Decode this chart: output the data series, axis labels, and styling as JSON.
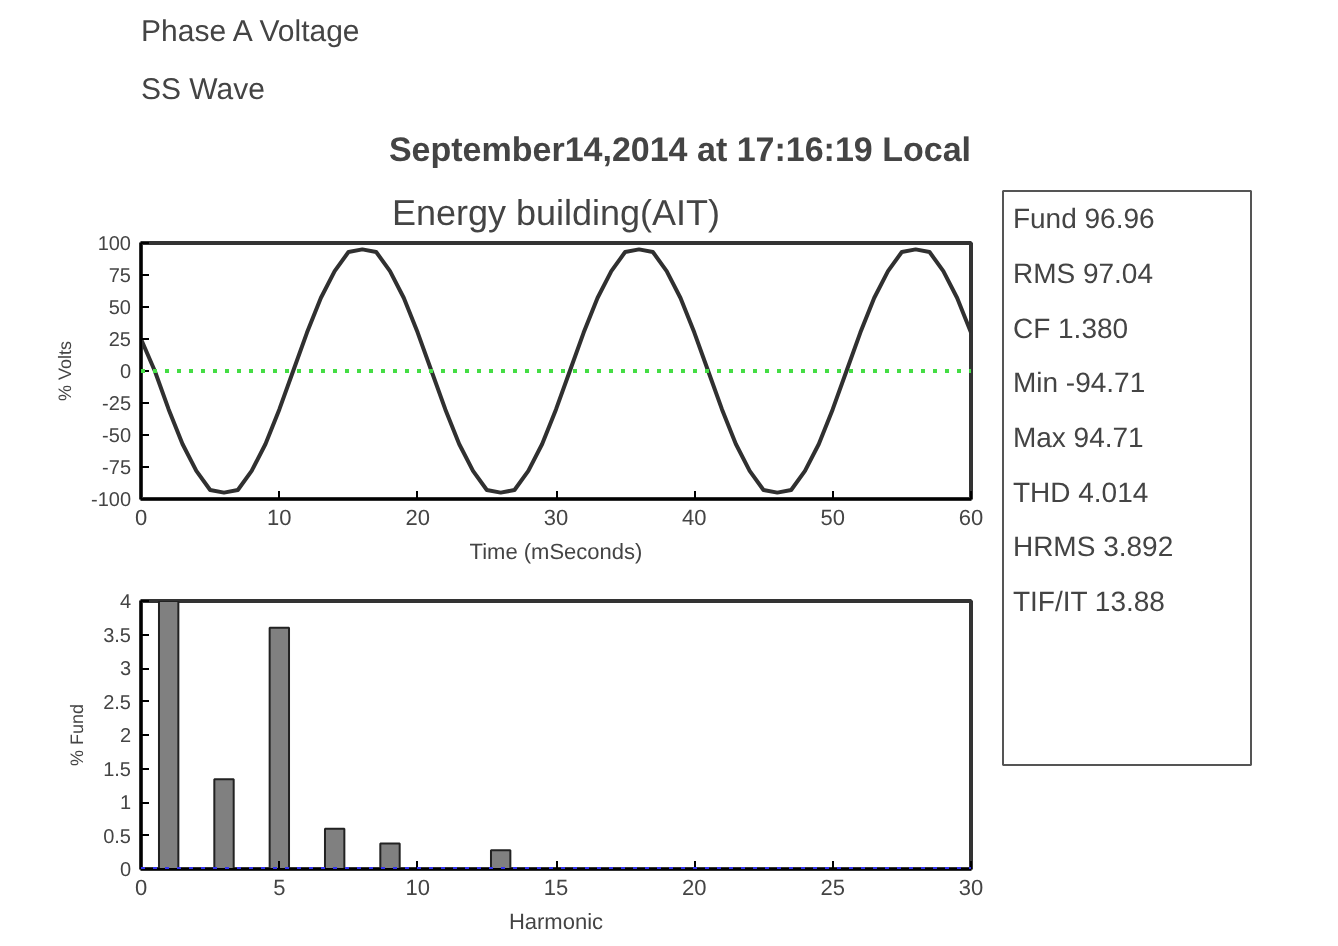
{
  "chart_data": [
    {
      "type": "line",
      "title": "Energy building(AIT)",
      "annotations": [
        "Phase A Voltage",
        "SS Wave",
        "September14,2014 at 17:16:19 Local"
      ],
      "xlabel": "Time (mSeconds)",
      "ylabel": "% Volts",
      "xlim": [
        0,
        60
      ],
      "xticks": [
        0,
        10,
        20,
        30,
        40,
        50,
        60
      ],
      "ylim": [
        -100,
        100
      ],
      "yticks": [
        -100,
        -75,
        -50,
        -25,
        0,
        25,
        50,
        75,
        100
      ],
      "grid": false,
      "line_style": "solid",
      "marker": "none",
      "x": [
        0,
        1,
        2,
        3,
        4,
        5,
        6,
        7,
        8,
        9,
        10,
        11,
        12,
        13,
        14,
        15,
        16,
        17,
        18,
        19,
        20,
        21,
        22,
        23,
        24,
        25,
        26,
        27,
        28,
        29,
        30,
        31,
        32,
        33,
        34,
        35,
        36,
        37,
        38,
        39,
        40,
        41,
        42,
        43,
        44,
        45,
        46,
        47,
        48,
        49,
        50,
        51,
        52,
        53,
        54,
        55,
        56,
        57,
        58,
        59,
        60
      ],
      "series": [
        {
          "color": "#303030",
          "values": [
            25,
            0,
            -30,
            -57,
            -78,
            -93,
            -95,
            -93,
            -78,
            -57,
            -30,
            0,
            30,
            57,
            78,
            93,
            95,
            93,
            78,
            57,
            30,
            0,
            -30,
            -57,
            -78,
            -93,
            -95,
            -93,
            -78,
            -57,
            -30,
            0,
            30,
            57,
            78,
            93,
            95,
            93,
            78,
            57,
            30,
            0,
            -30,
            -57,
            -78,
            -93,
            -95,
            -93,
            -78,
            -57,
            -30,
            0,
            30,
            57,
            78,
            93,
            95,
            93,
            78,
            57,
            30
          ]
        }
      ],
      "ref_lines": [
        {
          "axis": "y",
          "value": 0,
          "color": "#44dd44",
          "line_style": "dotted"
        }
      ]
    },
    {
      "type": "bar",
      "xlabel": "Harmonic",
      "ylabel": "% Fund",
      "xlim": [
        0,
        30
      ],
      "xticks": [
        0,
        5,
        10,
        15,
        20,
        25,
        30
      ],
      "ylim": [
        0,
        4
      ],
      "yticks": [
        0,
        0.5,
        1,
        1.5,
        2,
        2.5,
        3,
        3.5,
        4
      ],
      "grid": false,
      "x": [
        1,
        3,
        5,
        7,
        9,
        13
      ],
      "series": [
        {
          "color": "#808080",
          "values": [
            4,
            1.34,
            3.6,
            0.6,
            0.38,
            0.28
          ]
        }
      ],
      "ref_lines": [
        {
          "axis": "y",
          "value": 0,
          "color": "#3333ee",
          "line_style": "dotted"
        }
      ]
    },
    {
      "type": "other",
      "annotations": [
        "Fund 96.96",
        "RMS 97.04",
        "CF 1.380",
        "Min -94.71",
        "Max 94.71",
        "THD 4.014",
        "HRMS 3.892",
        "TIF/IT 13.88"
      ]
    }
  ]
}
